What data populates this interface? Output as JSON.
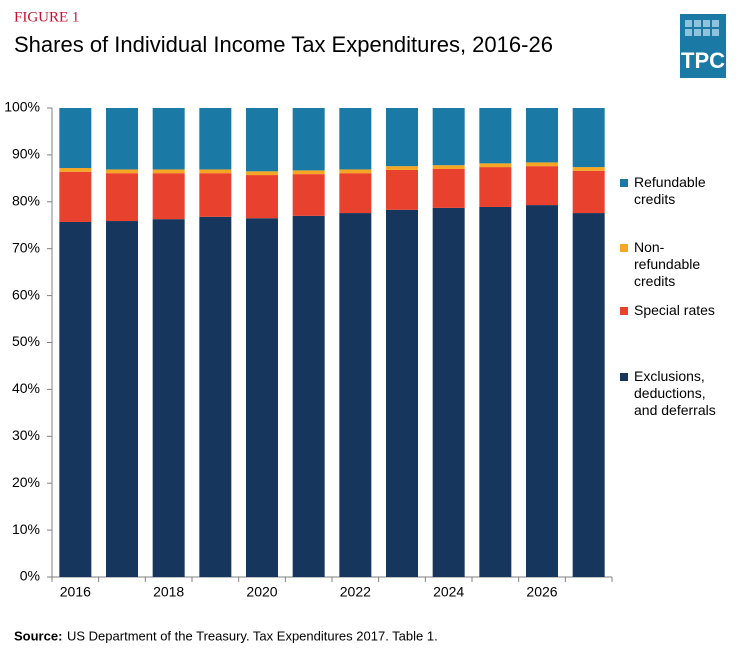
{
  "chart_data": {
    "type": "stacked-bar",
    "figure_label": "FIGURE 1",
    "title": "Shares of Individual Income Tax Expenditures, 2016-26",
    "logo": "TPC",
    "source_label": "Source:",
    "source": "US Department of the Treasury. Tax Expenditures 2017. Table 1.",
    "categories": [
      "2016",
      null,
      "2018",
      null,
      "2020",
      null,
      "2022",
      null,
      "2024",
      null,
      "2026",
      null
    ],
    "series": [
      {
        "name": "Exclusions, deductions, and deferrals",
        "color": "#17365d",
        "values": [
          75.7,
          75.9,
          76.3,
          76.8,
          76.5,
          77.0,
          77.6,
          78.3,
          78.7,
          78.9,
          79.3,
          77.6
        ]
      },
      {
        "name": "Special rates",
        "color": "#e8412e",
        "values": [
          10.7,
          10.2,
          9.8,
          9.3,
          9.2,
          8.9,
          8.5,
          8.5,
          8.3,
          8.5,
          8.3,
          9.0
        ]
      },
      {
        "name": "Non-refundable credits",
        "color": "#f5a623",
        "values": [
          0.8,
          0.8,
          0.8,
          0.8,
          0.8,
          0.8,
          0.8,
          0.8,
          0.8,
          0.8,
          0.8,
          0.8
        ]
      },
      {
        "name": "Refundable credits",
        "color": "#1a79a5",
        "values": [
          12.8,
          13.1,
          13.1,
          13.1,
          13.5,
          13.3,
          13.1,
          12.4,
          12.2,
          11.8,
          11.6,
          12.6
        ]
      }
    ],
    "ylim": [
      0,
      100
    ],
    "yticks": [
      {
        "value": 0,
        "label": "0%"
      },
      {
        "value": 10,
        "label": "10%"
      },
      {
        "value": 20,
        "label": "20%"
      },
      {
        "value": 30,
        "label": "30%"
      },
      {
        "value": 40,
        "label": "40%"
      },
      {
        "value": 50,
        "label": "50%"
      },
      {
        "value": 60,
        "label": "60%"
      },
      {
        "value": 70,
        "label": "70%"
      },
      {
        "value": 80,
        "label": "80%"
      },
      {
        "value": 90,
        "label": "90%"
      },
      {
        "value": 100,
        "label": "100%"
      }
    ],
    "legend": "right"
  }
}
